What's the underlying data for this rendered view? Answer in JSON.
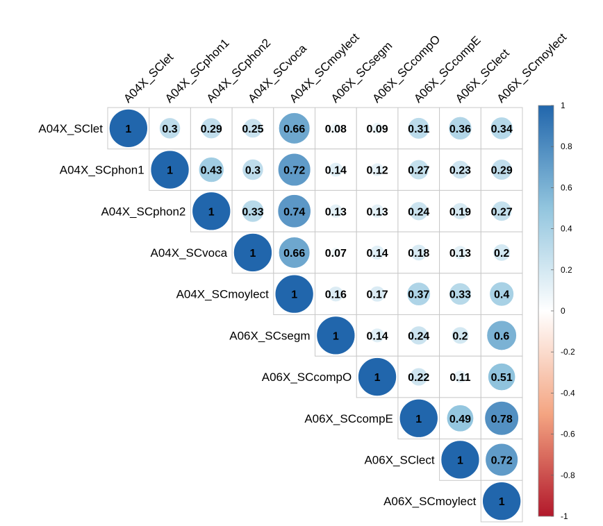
{
  "chart_data": {
    "type": "heatmap",
    "style": "upper-triangle circle correlation matrix (corrplot)",
    "variables": [
      "A04X_SClet",
      "A04X_SCphon1",
      "A04X_SCphon2",
      "A04X_SCvoca",
      "A04X_SCmoylect",
      "A06X_SCsegm",
      "A06X_SCcompO",
      "A06X_SCcompE",
      "A06X_SClect",
      "A06X_SCmoylect"
    ],
    "matrix": [
      [
        1,
        0.3,
        0.29,
        0.25,
        0.66,
        0.08,
        0.09,
        0.31,
        0.36,
        0.34
      ],
      [
        null,
        1,
        0.43,
        0.3,
        0.72,
        0.14,
        0.12,
        0.27,
        0.23,
        0.29
      ],
      [
        null,
        null,
        1,
        0.33,
        0.74,
        0.13,
        0.13,
        0.24,
        0.19,
        0.27
      ],
      [
        null,
        null,
        null,
        1,
        0.66,
        0.07,
        0.14,
        0.18,
        0.13,
        0.2
      ],
      [
        null,
        null,
        null,
        null,
        1,
        0.16,
        0.17,
        0.37,
        0.33,
        0.4
      ],
      [
        null,
        null,
        null,
        null,
        null,
        1,
        0.14,
        0.24,
        0.2,
        0.6
      ],
      [
        null,
        null,
        null,
        null,
        null,
        null,
        1,
        0.22,
        0.11,
        0.51
      ],
      [
        null,
        null,
        null,
        null,
        null,
        null,
        null,
        1,
        0.49,
        0.78
      ],
      [
        null,
        null,
        null,
        null,
        null,
        null,
        null,
        null,
        1,
        0.72
      ],
      [
        null,
        null,
        null,
        null,
        null,
        null,
        null,
        null,
        null,
        1
      ]
    ],
    "value_range": [
      -1,
      1
    ],
    "colorbar": {
      "ticks": [
        "1",
        "0.8",
        "0.6",
        "0.4",
        "0.2",
        "0",
        "-0.2",
        "-0.4",
        "-0.6",
        "-0.8",
        "-1"
      ],
      "colors": {
        "negative": "#B2182B",
        "zero": "#FFFFFF",
        "positive": "#2166AC"
      }
    },
    "grid": true,
    "legend_position": "right"
  }
}
